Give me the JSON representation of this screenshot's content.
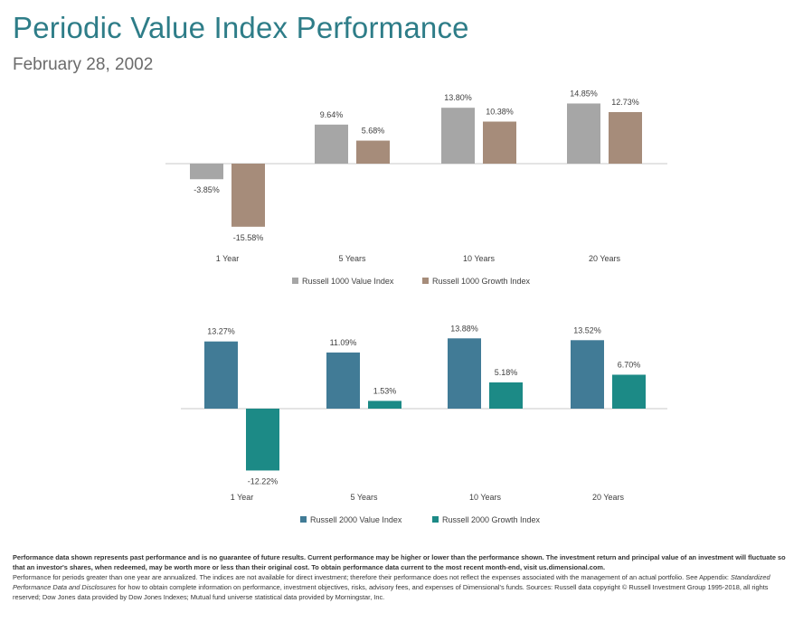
{
  "header": {
    "title": "Periodic Value Index Performance",
    "date": "February 28, 2002"
  },
  "colors": {
    "title": "#2e7d88",
    "russell1000_value": "#a6a6a6",
    "russell1000_growth": "#a68c7a",
    "russell2000_value": "#417b96",
    "russell2000_growth": "#1c8a86",
    "axis": "#c8c8c8"
  },
  "chart_data": [
    {
      "type": "bar",
      "categories": [
        "1 Year",
        "5 Years",
        "10 Years",
        "20 Years"
      ],
      "series": [
        {
          "name": "Russell 1000 Value Index",
          "values": [
            -3.85,
            9.64,
            13.8,
            14.85
          ],
          "labels": [
            "-3.85%",
            "9.64%",
            "13.80%",
            "14.85%"
          ]
        },
        {
          "name": "Russell 1000 Growth Index",
          "values": [
            -15.58,
            5.68,
            10.38,
            12.73
          ],
          "labels": [
            "-15.58%",
            "5.68%",
            "10.38%",
            "12.73%"
          ]
        }
      ],
      "ylim": [
        -15.58,
        14.85
      ],
      "legend": "bottom"
    },
    {
      "type": "bar",
      "categories": [
        "1 Year",
        "5 Years",
        "10 Years",
        "20 Years"
      ],
      "series": [
        {
          "name": "Russell 2000 Value Index",
          "values": [
            13.27,
            11.09,
            13.88,
            13.52
          ],
          "labels": [
            "13.27%",
            "11.09%",
            "13.88%",
            "13.52%"
          ]
        },
        {
          "name": "Russell 2000 Growth Index",
          "values": [
            -12.22,
            1.53,
            5.18,
            6.7
          ],
          "labels": [
            "-12.22%",
            "1.53%",
            "5.18%",
            "6.70%"
          ]
        }
      ],
      "ylim": [
        -12.22,
        13.88
      ],
      "legend": "bottom"
    }
  ],
  "disclaimer": {
    "line1_bold": "Performance data shown represents past performance and is no guarantee of future results.  Current performance may be higher or lower than the performance shown.  The investment return and principal value of an investment will fluctuate so that an investor's shares, when redeemed, may be worth more or less than their original cost.  To obtain performance data current to the most recent month-end, visit us.dimensional.com.",
    "line2_a": "Performance for periods greater than one year are annualized. The indices are not available for direct investment; therefore their performance does not reflect the expenses associated with the management of an actual portfolio. See Appendix:",
    "line2_italic": "Standardized Performance Data and Disclosures",
    "line2_b": "for how to obtain complete information on performance, investment objectives, risks, advisory fees, and expenses of Dimensional's funds. Sources: Russell data copyright © Russell Investment Group 1995-2018, all rights reserved; Dow Jones data provided by Dow Jones Indexes; Mutual fund universe statistical data provided by Morningstar, Inc."
  }
}
